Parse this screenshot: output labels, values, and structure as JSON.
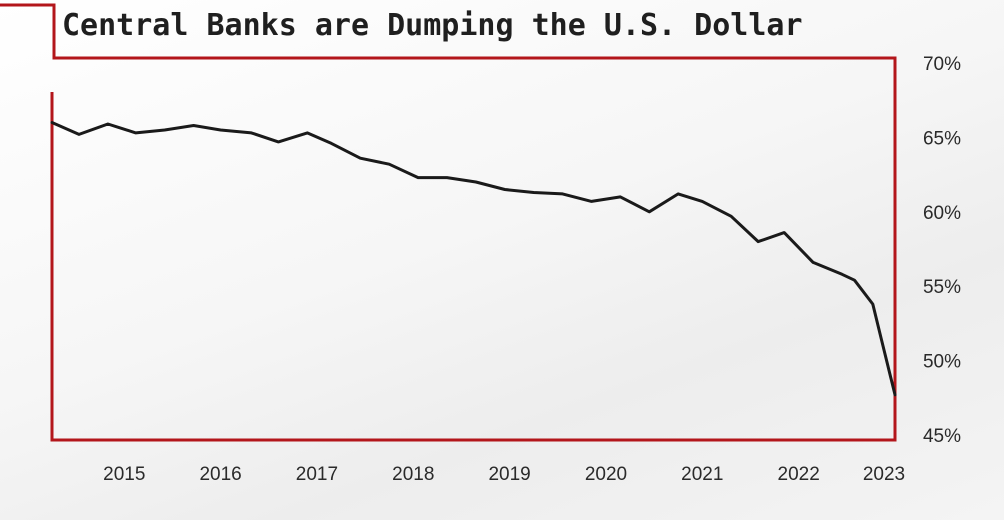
{
  "chart_data": {
    "type": "line",
    "title": "Central Banks are Dumping the U.S. Dollar",
    "xlabel": "",
    "ylabel": "",
    "y_axis_position": "right",
    "ylim": [
      45,
      70
    ],
    "y_ticks": [
      70,
      65,
      60,
      55,
      50,
      45
    ],
    "y_tick_labels": [
      "70%",
      "65%",
      "60%",
      "55%",
      "50%",
      "45%"
    ],
    "xlim": [
      2014.25,
      2023.0
    ],
    "x_ticks": [
      2015,
      2016,
      2017,
      2018,
      2019,
      2020,
      2021,
      2022,
      2023
    ],
    "x_tick_labels": [
      "2015",
      "2016",
      "2017",
      "2018",
      "2019",
      "2020",
      "2021",
      "2022",
      "2023"
    ],
    "grid": false,
    "legend": "none",
    "colors": {
      "line": "#1a1a1a",
      "frame": "#b3161b"
    },
    "series": [
      {
        "x": [
          2014.25,
          2014.53,
          2014.83,
          2015.12,
          2015.42,
          2015.72,
          2016.0,
          2016.32,
          2016.6,
          2016.9,
          2017.15,
          2017.45,
          2017.75,
          2018.05,
          2018.35,
          2018.65,
          2018.95,
          2019.25,
          2019.55,
          2019.85,
          2020.15,
          2020.45,
          2020.75,
          2021.0,
          2021.3,
          2021.58,
          2021.85,
          2022.15,
          2022.45,
          2022.58,
          2022.77,
          2022.86,
          2023.0
        ],
        "y": [
          66.0,
          65.2,
          65.9,
          65.3,
          65.5,
          65.8,
          65.5,
          65.3,
          64.7,
          65.3,
          64.6,
          63.6,
          63.2,
          62.3,
          62.3,
          62.0,
          61.5,
          61.3,
          61.2,
          60.7,
          61.0,
          60.0,
          61.2,
          60.7,
          59.7,
          58.0,
          58.6,
          56.6,
          55.8,
          55.4,
          53.8,
          51.4,
          47.7
        ]
      }
    ]
  }
}
